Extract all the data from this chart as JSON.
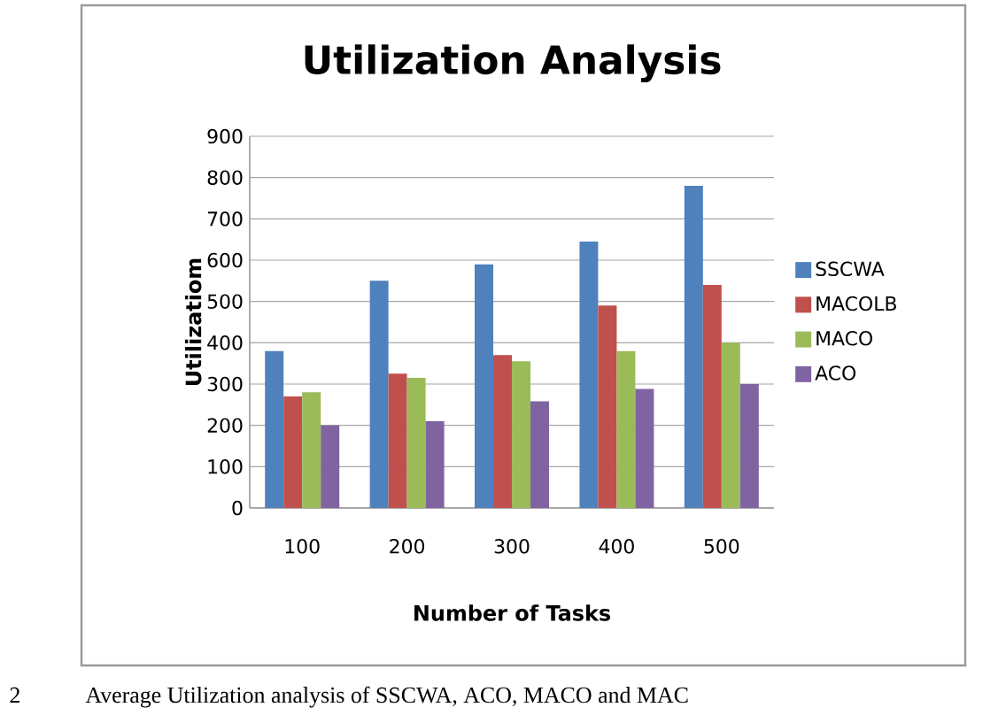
{
  "chart_data": {
    "type": "bar",
    "title": "Utilization Analysis",
    "xlabel": "Number of Tasks",
    "ylabel": "Utilizatiom",
    "categories": [
      "100",
      "200",
      "300",
      "400",
      "500"
    ],
    "series": [
      {
        "name": "SSCWA",
        "color": "#4f81bd",
        "values": [
          380,
          550,
          590,
          645,
          780
        ]
      },
      {
        "name": "MACOLB",
        "color": "#c0504d",
        "values": [
          270,
          325,
          370,
          490,
          540
        ]
      },
      {
        "name": "MACO",
        "color": "#9bbb59",
        "values": [
          280,
          315,
          355,
          380,
          400
        ]
      },
      {
        "name": "ACO",
        "color": "#8064a2",
        "values": [
          200,
          210,
          258,
          288,
          300
        ]
      }
    ],
    "ylim": [
      0,
      900
    ],
    "yticks": [
      0,
      100,
      200,
      300,
      400,
      500,
      600,
      700,
      800,
      900
    ],
    "grid": "y",
    "legend": "right",
    "annotations": [
      "2",
      "Average Utilization analysis of SSCWA, ACO, MACO and MAC"
    ]
  }
}
